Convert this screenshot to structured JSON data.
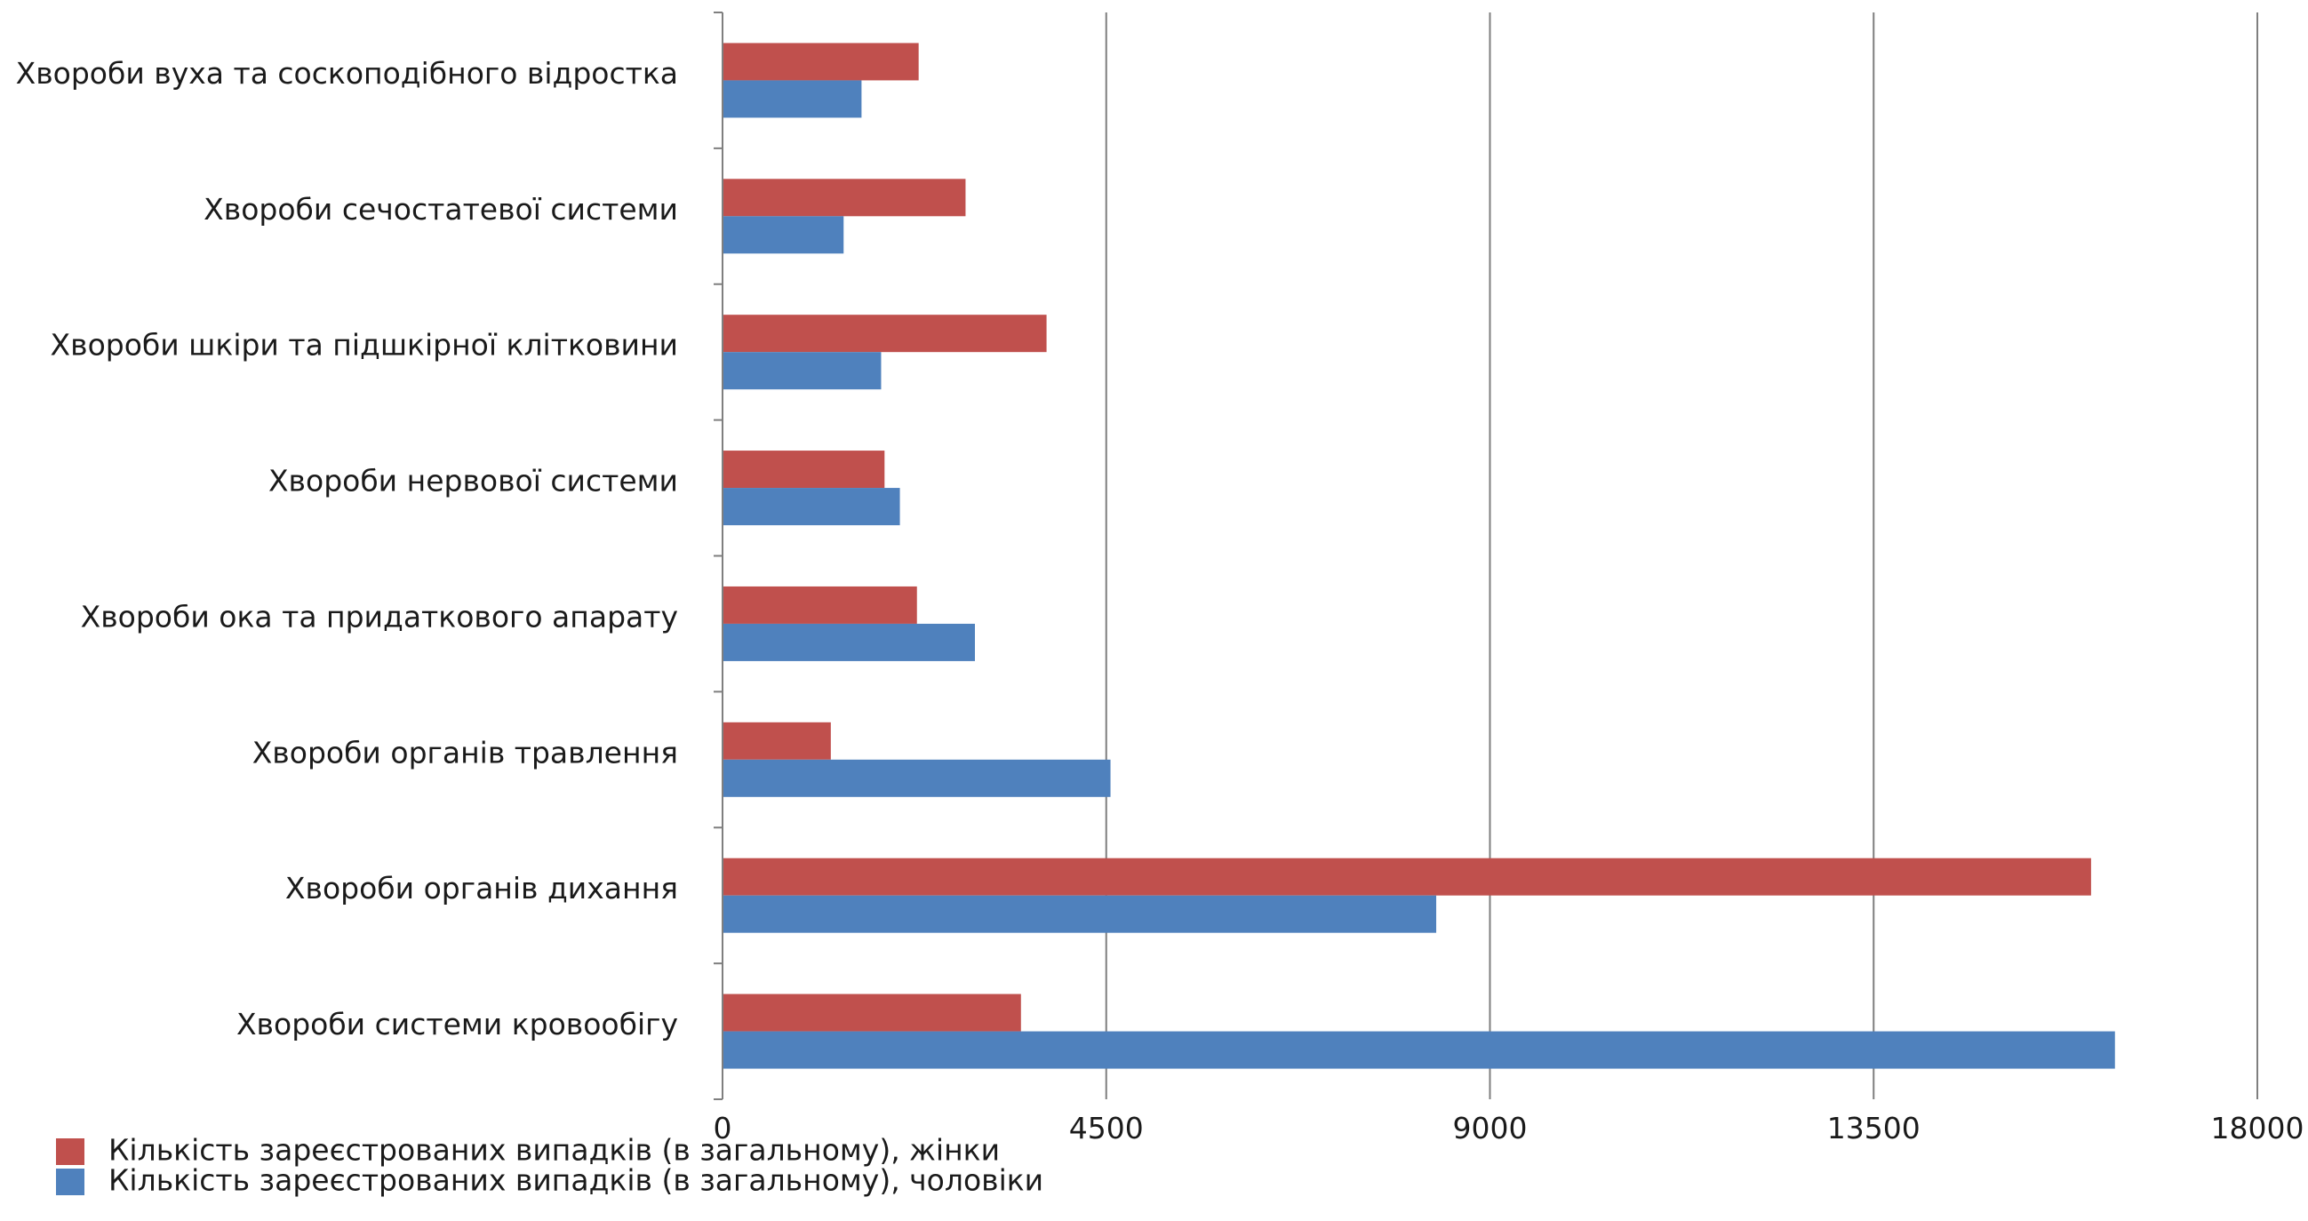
{
  "chart_data": {
    "type": "bar",
    "orientation": "horizontal",
    "title": "",
    "xlabel": "",
    "ylabel": "",
    "xlim": [
      0,
      18000
    ],
    "ticks": [
      0,
      4500,
      9000,
      13500,
      18000
    ],
    "tick_labels": [
      "0",
      "4500",
      "9000",
      "13500",
      "18000"
    ],
    "grid": "vertical",
    "legend_position": "bottom-left",
    "categories": [
      "Хвороби вуха та соскоподібного відростка",
      "Хвороби сечостатевої системи",
      "Хвороби шкіри та підшкірної клітковини",
      "Хвороби нервової системи",
      "Хвороби ока та придаткового апарату",
      "Хвороби органів травлення",
      "Хвороби органів дихання",
      "Хвороби системи кровообігу"
    ],
    "series": [
      {
        "name": "Кількість зареєстрованих випадків (в загальному), жінки",
        "color": "#c0504d",
        "values": [
          2300,
          2850,
          3800,
          1900,
          2280,
          1270,
          16050,
          3500
        ]
      },
      {
        "name": "Кількість зареєстрованих випадків (в загальному), чоловіки",
        "color": "#4f81bd",
        "values": [
          1630,
          1420,
          1860,
          2080,
          2960,
          4550,
          8370,
          16330
        ]
      }
    ]
  }
}
